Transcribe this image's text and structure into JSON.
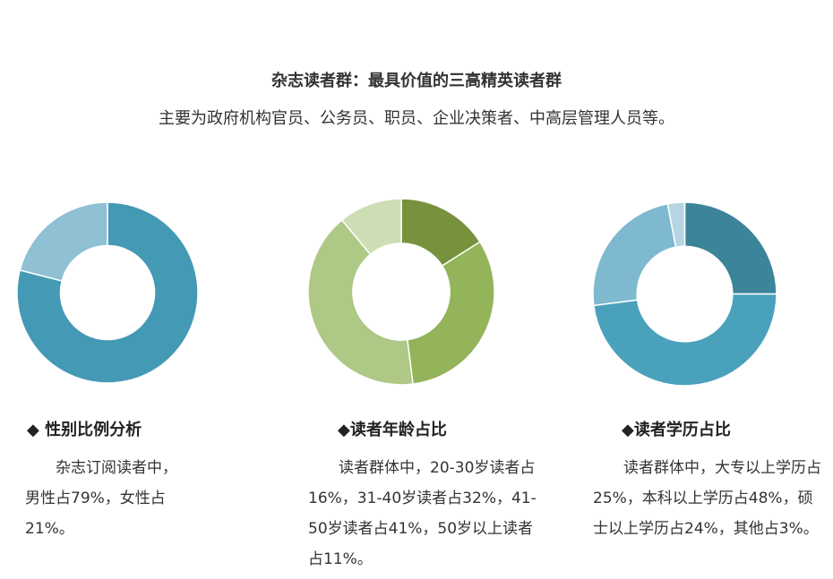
{
  "header": {
    "title": "杂志读者群：最具价值的三高精英读者群",
    "subtitle": "主要为政府机构官员、公务员、职员、企业决策者、中高层管理人员等。"
  },
  "chart_data": [
    {
      "type": "pie",
      "series": [
        {
          "values": [
            79,
            21
          ],
          "colors": [
            "#4499b4",
            "#8fc0d3"
          ]
        }
      ]
    },
    {
      "type": "pie",
      "series": [
        {
          "values": [
            16,
            32,
            41,
            11
          ],
          "colors": [
            "#76923c",
            "#93b459",
            "#aec885",
            "#cedeb4"
          ]
        }
      ]
    },
    {
      "type": "pie",
      "series": [
        {
          "values": [
            25,
            48,
            24,
            3
          ],
          "colors": [
            "#3b849a",
            "#4aa1bc",
            "#7fb9cf",
            "#b5d5e2"
          ]
        }
      ]
    }
  ],
  "sections": [
    {
      "title": "◆  性别比例分析",
      "text": "杂志订阅读者中，男性占79%，女性占21%。"
    },
    {
      "title": "◆读者年龄占比",
      "text": "读者群体中，20-30岁读者占16%，31-40岁读者占32%，41-50岁读者占41%，50岁以上读者占11%。"
    },
    {
      "title": "◆读者学历占比",
      "text": "读者群体中，大专以上学历占25%，本科以上学历占48%，硕士以上学历占24%，其他占3%。"
    }
  ]
}
